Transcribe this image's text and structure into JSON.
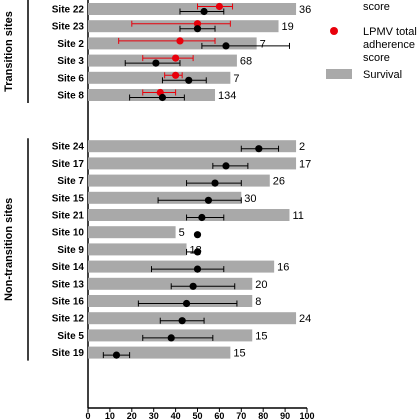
{
  "chart_data": {
    "type": "bar",
    "xlim": [
      0,
      100
    ],
    "xticks": [
      "0",
      "10",
      "20",
      "30",
      "40",
      "50",
      "60",
      "70",
      "80",
      "90",
      "100"
    ],
    "groups": [
      {
        "label": "Transition sites",
        "rows": [
          0,
          5
        ]
      },
      {
        "label": "Non-transition sites",
        "rows": [
          6,
          18
        ]
      }
    ],
    "categories": [
      "Site 22",
      "Site 23",
      "Site 2",
      "Site 3",
      "Site 6",
      "Site 8",
      "Site 24",
      "Site 17",
      "Site 7",
      "Site 15",
      "Site 21",
      "Site 10",
      "Site 9",
      "Site 14",
      "Site 13",
      "Site 16",
      "Site 12",
      "Site 5",
      "Site 19"
    ],
    "n_labels": [
      "36",
      "19",
      "7",
      "68",
      "7",
      "134",
      "2",
      "17",
      "26",
      "30",
      "11",
      "5",
      "18",
      "16",
      "20",
      "8",
      "24",
      "15",
      "15"
    ],
    "series": [
      {
        "name": "Survival",
        "type": "bar",
        "color": "#a9a9a9",
        "values": [
          95,
          87,
          77,
          68,
          65,
          58,
          95,
          95,
          83,
          70,
          92,
          40,
          45,
          85,
          75,
          75,
          95,
          75,
          65
        ]
      },
      {
        "name": "LPMV total adherence score",
        "type": "point",
        "color": "#e8000b",
        "values": [
          60,
          50,
          42,
          40,
          40,
          33,
          null,
          null,
          null,
          null,
          null,
          null,
          null,
          null,
          null,
          null,
          null,
          null,
          null
        ],
        "err_low": [
          50,
          20,
          14,
          25,
          35,
          25,
          null,
          null,
          null,
          null,
          null,
          null,
          null,
          null,
          null,
          null,
          null,
          null,
          null
        ],
        "err_high": [
          66,
          65,
          58,
          48,
          43,
          40,
          null,
          null,
          null,
          null,
          null,
          null,
          null,
          null,
          null,
          null,
          null,
          null,
          null
        ]
      },
      {
        "name": "score",
        "type": "point",
        "color": "#000000",
        "values": [
          53,
          50,
          63,
          31,
          46,
          34,
          78,
          63,
          58,
          55,
          52,
          50,
          50,
          50,
          48,
          45,
          43,
          38,
          13
        ],
        "err_low": [
          42,
          42,
          52,
          17,
          34,
          19,
          70,
          57,
          45,
          32,
          45,
          50,
          45,
          29,
          38,
          23,
          33,
          25,
          7
        ],
        "err_high": [
          62,
          58,
          92,
          42,
          54,
          44,
          87,
          73,
          70,
          70,
          62,
          50,
          51,
          62,
          67,
          68,
          53,
          57,
          19
        ]
      }
    ],
    "legend": {
      "position": "top-right",
      "items": [
        {
          "label": "score",
          "color": "#000000",
          "marker": "circle"
        },
        {
          "label": "LPMV total adherence score",
          "color": "#e8000b",
          "marker": "circle"
        },
        {
          "label": "Survival",
          "color": "#a9a9a9",
          "marker": "rect"
        }
      ]
    }
  }
}
